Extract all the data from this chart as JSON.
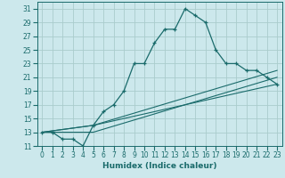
{
  "xlabel": "Humidex (Indice chaleur)",
  "bg_color": "#cce8ec",
  "grid_color": "#aacccc",
  "line_color": "#1a6b6b",
  "xlim": [
    -0.5,
    23.5
  ],
  "ylim": [
    11,
    32
  ],
  "yticks": [
    11,
    13,
    15,
    17,
    19,
    21,
    23,
    25,
    27,
    29,
    31
  ],
  "xticks": [
    0,
    1,
    2,
    3,
    4,
    5,
    6,
    7,
    8,
    9,
    10,
    11,
    12,
    13,
    14,
    15,
    16,
    17,
    18,
    19,
    20,
    21,
    22,
    23
  ],
  "line1_x": [
    0,
    1,
    2,
    3,
    4,
    5,
    6,
    7,
    8,
    9,
    10,
    11,
    12,
    13,
    14,
    15,
    16,
    17,
    18,
    19,
    20,
    21,
    22,
    23
  ],
  "line1_y": [
    13,
    13,
    12,
    12,
    11,
    14,
    16,
    17,
    19,
    23,
    23,
    26,
    28,
    28,
    31,
    30,
    29,
    25,
    23,
    23,
    22,
    22,
    21,
    20
  ],
  "line2_x": [
    0,
    5,
    23
  ],
  "line2_y": [
    13,
    13,
    21
  ],
  "line3_x": [
    0,
    5,
    23
  ],
  "line3_y": [
    13,
    14,
    22
  ],
  "line4_x": [
    0,
    5,
    23
  ],
  "line4_y": [
    13,
    14,
    20
  ]
}
